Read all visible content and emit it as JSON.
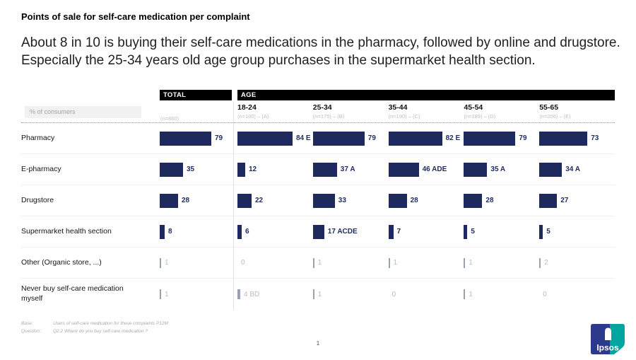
{
  "slide": {
    "title": "Points of sale for self-care medication per complaint",
    "subtitle": "About 8 in 10 is buying their self-care medications in the pharmacy, followed by online and drugstore. Especially the 25-34 years old age group purchases in the supermarket health section.",
    "page_number": "1"
  },
  "table": {
    "unit_label": "% of consumers",
    "total": {
      "label": "TOTAL",
      "n": "(n=860)"
    },
    "age": {
      "label": "AGE",
      "groups": [
        {
          "label": "18-24",
          "n": "(n=100) – (A)"
        },
        {
          "label": "25-34",
          "n": "(n=175) – (B)"
        },
        {
          "label": "35-44",
          "n": "(n=190) – (C)"
        },
        {
          "label": "45-54",
          "n": "(n=189) – (D)"
        },
        {
          "label": "55-65",
          "n": "(n=206) – (E)"
        }
      ]
    },
    "rows": [
      {
        "label": "Pharmacy",
        "muted": false,
        "cells": [
          {
            "value": 79,
            "sig": ""
          },
          {
            "value": 84,
            "sig": "E"
          },
          {
            "value": 79,
            "sig": ""
          },
          {
            "value": 82,
            "sig": "E"
          },
          {
            "value": 79,
            "sig": ""
          },
          {
            "value": 73,
            "sig": ""
          }
        ]
      },
      {
        "label": "E-pharmacy",
        "muted": false,
        "cells": [
          {
            "value": 35,
            "sig": ""
          },
          {
            "value": 12,
            "sig": ""
          },
          {
            "value": 37,
            "sig": "A"
          },
          {
            "value": 46,
            "sig": "ADE"
          },
          {
            "value": 35,
            "sig": "A"
          },
          {
            "value": 34,
            "sig": "A"
          }
        ]
      },
      {
        "label": "Drugstore",
        "muted": false,
        "cells": [
          {
            "value": 28,
            "sig": ""
          },
          {
            "value": 22,
            "sig": ""
          },
          {
            "value": 33,
            "sig": ""
          },
          {
            "value": 28,
            "sig": ""
          },
          {
            "value": 28,
            "sig": ""
          },
          {
            "value": 27,
            "sig": ""
          }
        ]
      },
      {
        "label": "Supermarket health section",
        "muted": false,
        "cells": [
          {
            "value": 8,
            "sig": ""
          },
          {
            "value": 6,
            "sig": ""
          },
          {
            "value": 17,
            "sig": "ACDE"
          },
          {
            "value": 7,
            "sig": ""
          },
          {
            "value": 5,
            "sig": ""
          },
          {
            "value": 5,
            "sig": ""
          }
        ]
      },
      {
        "label": "Other (Organic store, ...)",
        "muted": true,
        "cells": [
          {
            "value": 1,
            "sig": ""
          },
          {
            "value": 0,
            "sig": ""
          },
          {
            "value": 1,
            "sig": ""
          },
          {
            "value": 1,
            "sig": ""
          },
          {
            "value": 1,
            "sig": ""
          },
          {
            "value": 2,
            "sig": ""
          }
        ]
      },
      {
        "label": "Never buy self-care medication myself",
        "muted": true,
        "cells": [
          {
            "value": 1,
            "sig": ""
          },
          {
            "value": 4,
            "sig": "BD"
          },
          {
            "value": 1,
            "sig": ""
          },
          {
            "value": 0,
            "sig": ""
          },
          {
            "value": 1,
            "sig": ""
          },
          {
            "value": 0,
            "sig": ""
          }
        ]
      }
    ]
  },
  "footer": {
    "base_label": "Base:",
    "base_text": "Users of self-care medication for these complaints P12M",
    "question_label": "Question:",
    "question_text": "Q2.2 Where do you buy self-care medication ?"
  },
  "logo": {
    "text": "Ipsos",
    "blue": "#2d3a8c",
    "teal": "#00a5a0"
  },
  "colors": {
    "bar": "#1e2a5e",
    "muted_bar": "#9aa2ad",
    "muted_text": "#b7bcc6",
    "header_bg": "#000000"
  },
  "chart_data": {
    "type": "bar",
    "orientation": "horizontal",
    "title": "Points of sale for self-care medication per complaint",
    "subtitle": "About 8 in 10 is buying their self-care medications in the pharmacy, followed by online and drugstore. Especially the 25-34 years old age group purchases in the supermarket health section.",
    "unit": "% of consumers",
    "xlim": [
      0,
      100
    ],
    "categories": [
      "Pharmacy",
      "E-pharmacy",
      "Drugstore",
      "Supermarket health section",
      "Other (Organic store, ...)",
      "Never buy self-care medication myself"
    ],
    "series": [
      {
        "name": "TOTAL",
        "n": 860,
        "values": [
          79,
          35,
          28,
          8,
          1,
          1
        ]
      },
      {
        "name": "18-24",
        "n": 100,
        "letter": "A",
        "values": [
          84,
          12,
          22,
          6,
          0,
          4
        ]
      },
      {
        "name": "25-34",
        "n": 175,
        "letter": "B",
        "values": [
          79,
          37,
          33,
          17,
          1,
          1
        ]
      },
      {
        "name": "35-44",
        "n": 190,
        "letter": "C",
        "values": [
          82,
          46,
          28,
          7,
          1,
          0
        ]
      },
      {
        "name": "45-54",
        "n": 189,
        "letter": "D",
        "values": [
          79,
          35,
          28,
          5,
          1,
          1
        ]
      },
      {
        "name": "55-65",
        "n": 206,
        "letter": "E",
        "values": [
          73,
          34,
          27,
          5,
          2,
          0
        ]
      }
    ],
    "significance": [
      {
        "category": "Pharmacy",
        "series": "18-24",
        "higher_than": "E"
      },
      {
        "category": "Pharmacy",
        "series": "35-44",
        "higher_than": "E"
      },
      {
        "category": "E-pharmacy",
        "series": "25-34",
        "higher_than": "A"
      },
      {
        "category": "E-pharmacy",
        "series": "35-44",
        "higher_than": "ADE"
      },
      {
        "category": "E-pharmacy",
        "series": "45-54",
        "higher_than": "A"
      },
      {
        "category": "E-pharmacy",
        "series": "55-65",
        "higher_than": "A"
      },
      {
        "category": "Supermarket health section",
        "series": "25-34",
        "higher_than": "ACDE"
      },
      {
        "category": "Never buy self-care medication myself",
        "series": "18-24",
        "higher_than": "BD"
      }
    ]
  }
}
